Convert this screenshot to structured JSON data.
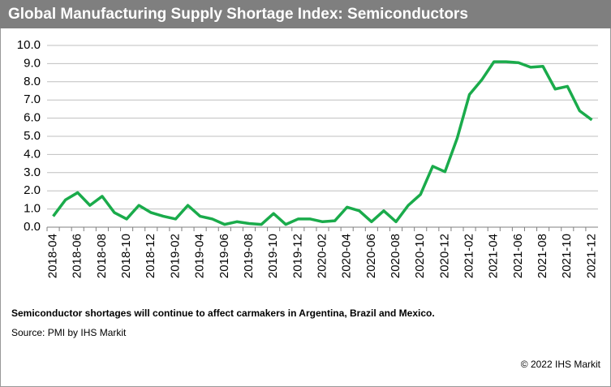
{
  "chart_data": {
    "type": "line",
    "title": "Global Manufacturing Supply Shortage Index: Semiconductors",
    "note": "Semiconductor shortages will continue to affect carmakers in Argentina, Brazil and Mexico.",
    "source": "Source: PMI by IHS Markit",
    "copyright": "© 2022 IHS Markit",
    "categories": [
      "2018-04",
      null,
      "2018-06",
      null,
      "2018-08",
      null,
      "2018-10",
      null,
      "2018-12",
      null,
      "2019-02",
      null,
      "2019-04",
      null,
      "2019-06",
      null,
      "2019-08",
      null,
      "2019-10",
      null,
      "2019-12",
      null,
      "2020-02",
      null,
      "2020-04",
      null,
      "2020-06",
      null,
      "2020-08",
      null,
      "2020-10",
      null,
      "2020-12",
      null,
      "2021-02",
      null,
      "2021-04",
      null,
      "2021-06",
      null,
      "2021-08",
      null,
      "2021-10",
      null,
      "2021-12"
    ],
    "series": [
      {
        "name": "Semiconductors",
        "color": "#1aab4b",
        "values": [
          0.6,
          1.5,
          1.9,
          1.2,
          1.7,
          0.8,
          0.45,
          1.2,
          0.8,
          0.6,
          0.45,
          1.2,
          0.6,
          0.45,
          0.15,
          0.3,
          0.2,
          0.15,
          0.75,
          0.15,
          0.45,
          0.45,
          0.3,
          0.35,
          1.1,
          0.9,
          0.3,
          0.9,
          0.3,
          1.2,
          1.8,
          3.35,
          3.05,
          4.9,
          7.3,
          8.1,
          9.1,
          9.1,
          9.05,
          8.8,
          8.85,
          7.6,
          7.75,
          6.4,
          5.9
        ]
      }
    ],
    "ylim": [
      0,
      10
    ],
    "yticks": [
      {
        "value": 0,
        "label": "0.0"
      },
      {
        "value": 1,
        "label": "1.0"
      },
      {
        "value": 2,
        "label": "2.0"
      },
      {
        "value": 3,
        "label": "3.0"
      },
      {
        "value": 4,
        "label": "4.0"
      },
      {
        "value": 5,
        "label": "5.0"
      },
      {
        "value": 6,
        "label": "6.0"
      },
      {
        "value": 7,
        "label": "7.0"
      },
      {
        "value": 8,
        "label": "8.0"
      },
      {
        "value": 9,
        "label": "9.0"
      },
      {
        "value": 10,
        "label": "10.0"
      }
    ],
    "grid": true
  }
}
